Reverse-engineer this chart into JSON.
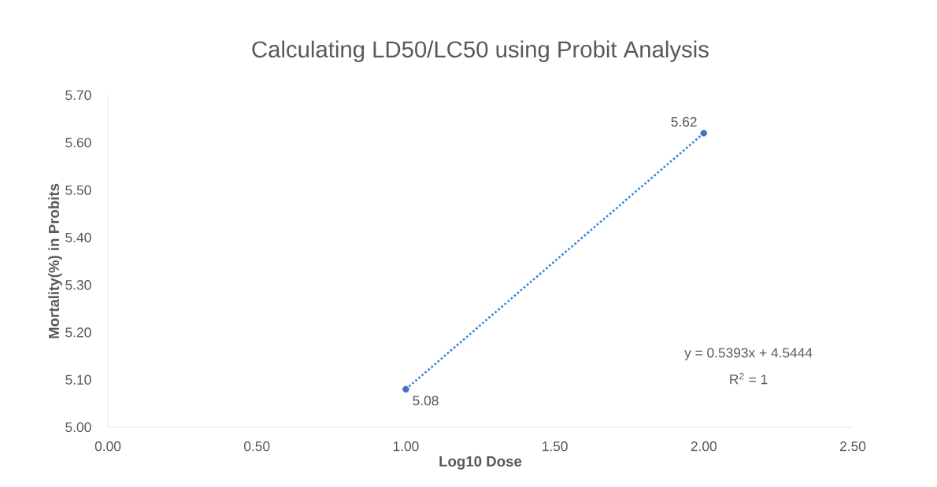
{
  "chart_data": {
    "type": "scatter",
    "title": "Calculating LD50/LC50 using Probit Analysis",
    "xlabel": "Log10 Dose",
    "ylabel": "Mortality(%) in Probits",
    "x": [
      1.0,
      2.0
    ],
    "series": [
      {
        "color": "#4472c4",
        "values": [
          5.08,
          5.62
        ],
        "value_labels": [
          "5.08",
          "5.62"
        ],
        "marker": "circle"
      },
      {
        "type": "line",
        "x": [
          1.0,
          2.0
        ],
        "values": [
          5.08,
          5.62
        ],
        "color": "#3a87d8",
        "line_style": "dotted",
        "marker": "none"
      }
    ],
    "xlim": [
      0,
      2.5
    ],
    "xticks": [
      {
        "value": 0,
        "label": "0.00"
      },
      {
        "value": 0.5,
        "label": "0.50"
      },
      {
        "value": 1.0,
        "label": "1.00"
      },
      {
        "value": 1.5,
        "label": "1.50"
      },
      {
        "value": 2.0,
        "label": "2.00"
      },
      {
        "value": 2.5,
        "label": "2.50"
      }
    ],
    "ylim": [
      5.0,
      5.7
    ],
    "yticks": [
      {
        "value": 5.0,
        "label": "5.00"
      },
      {
        "value": 5.1,
        "label": "5.10"
      },
      {
        "value": 5.2,
        "label": "5.20"
      },
      {
        "value": 5.3,
        "label": "5.30"
      },
      {
        "value": 5.4,
        "label": "5.40"
      },
      {
        "value": 5.5,
        "label": "5.50"
      },
      {
        "value": 5.6,
        "label": "5.60"
      },
      {
        "value": 5.7,
        "label": "5.70"
      }
    ],
    "annotations": [
      "y = 0.5393x + 4.5444",
      "R$^{2}$ = 1"
    ]
  }
}
